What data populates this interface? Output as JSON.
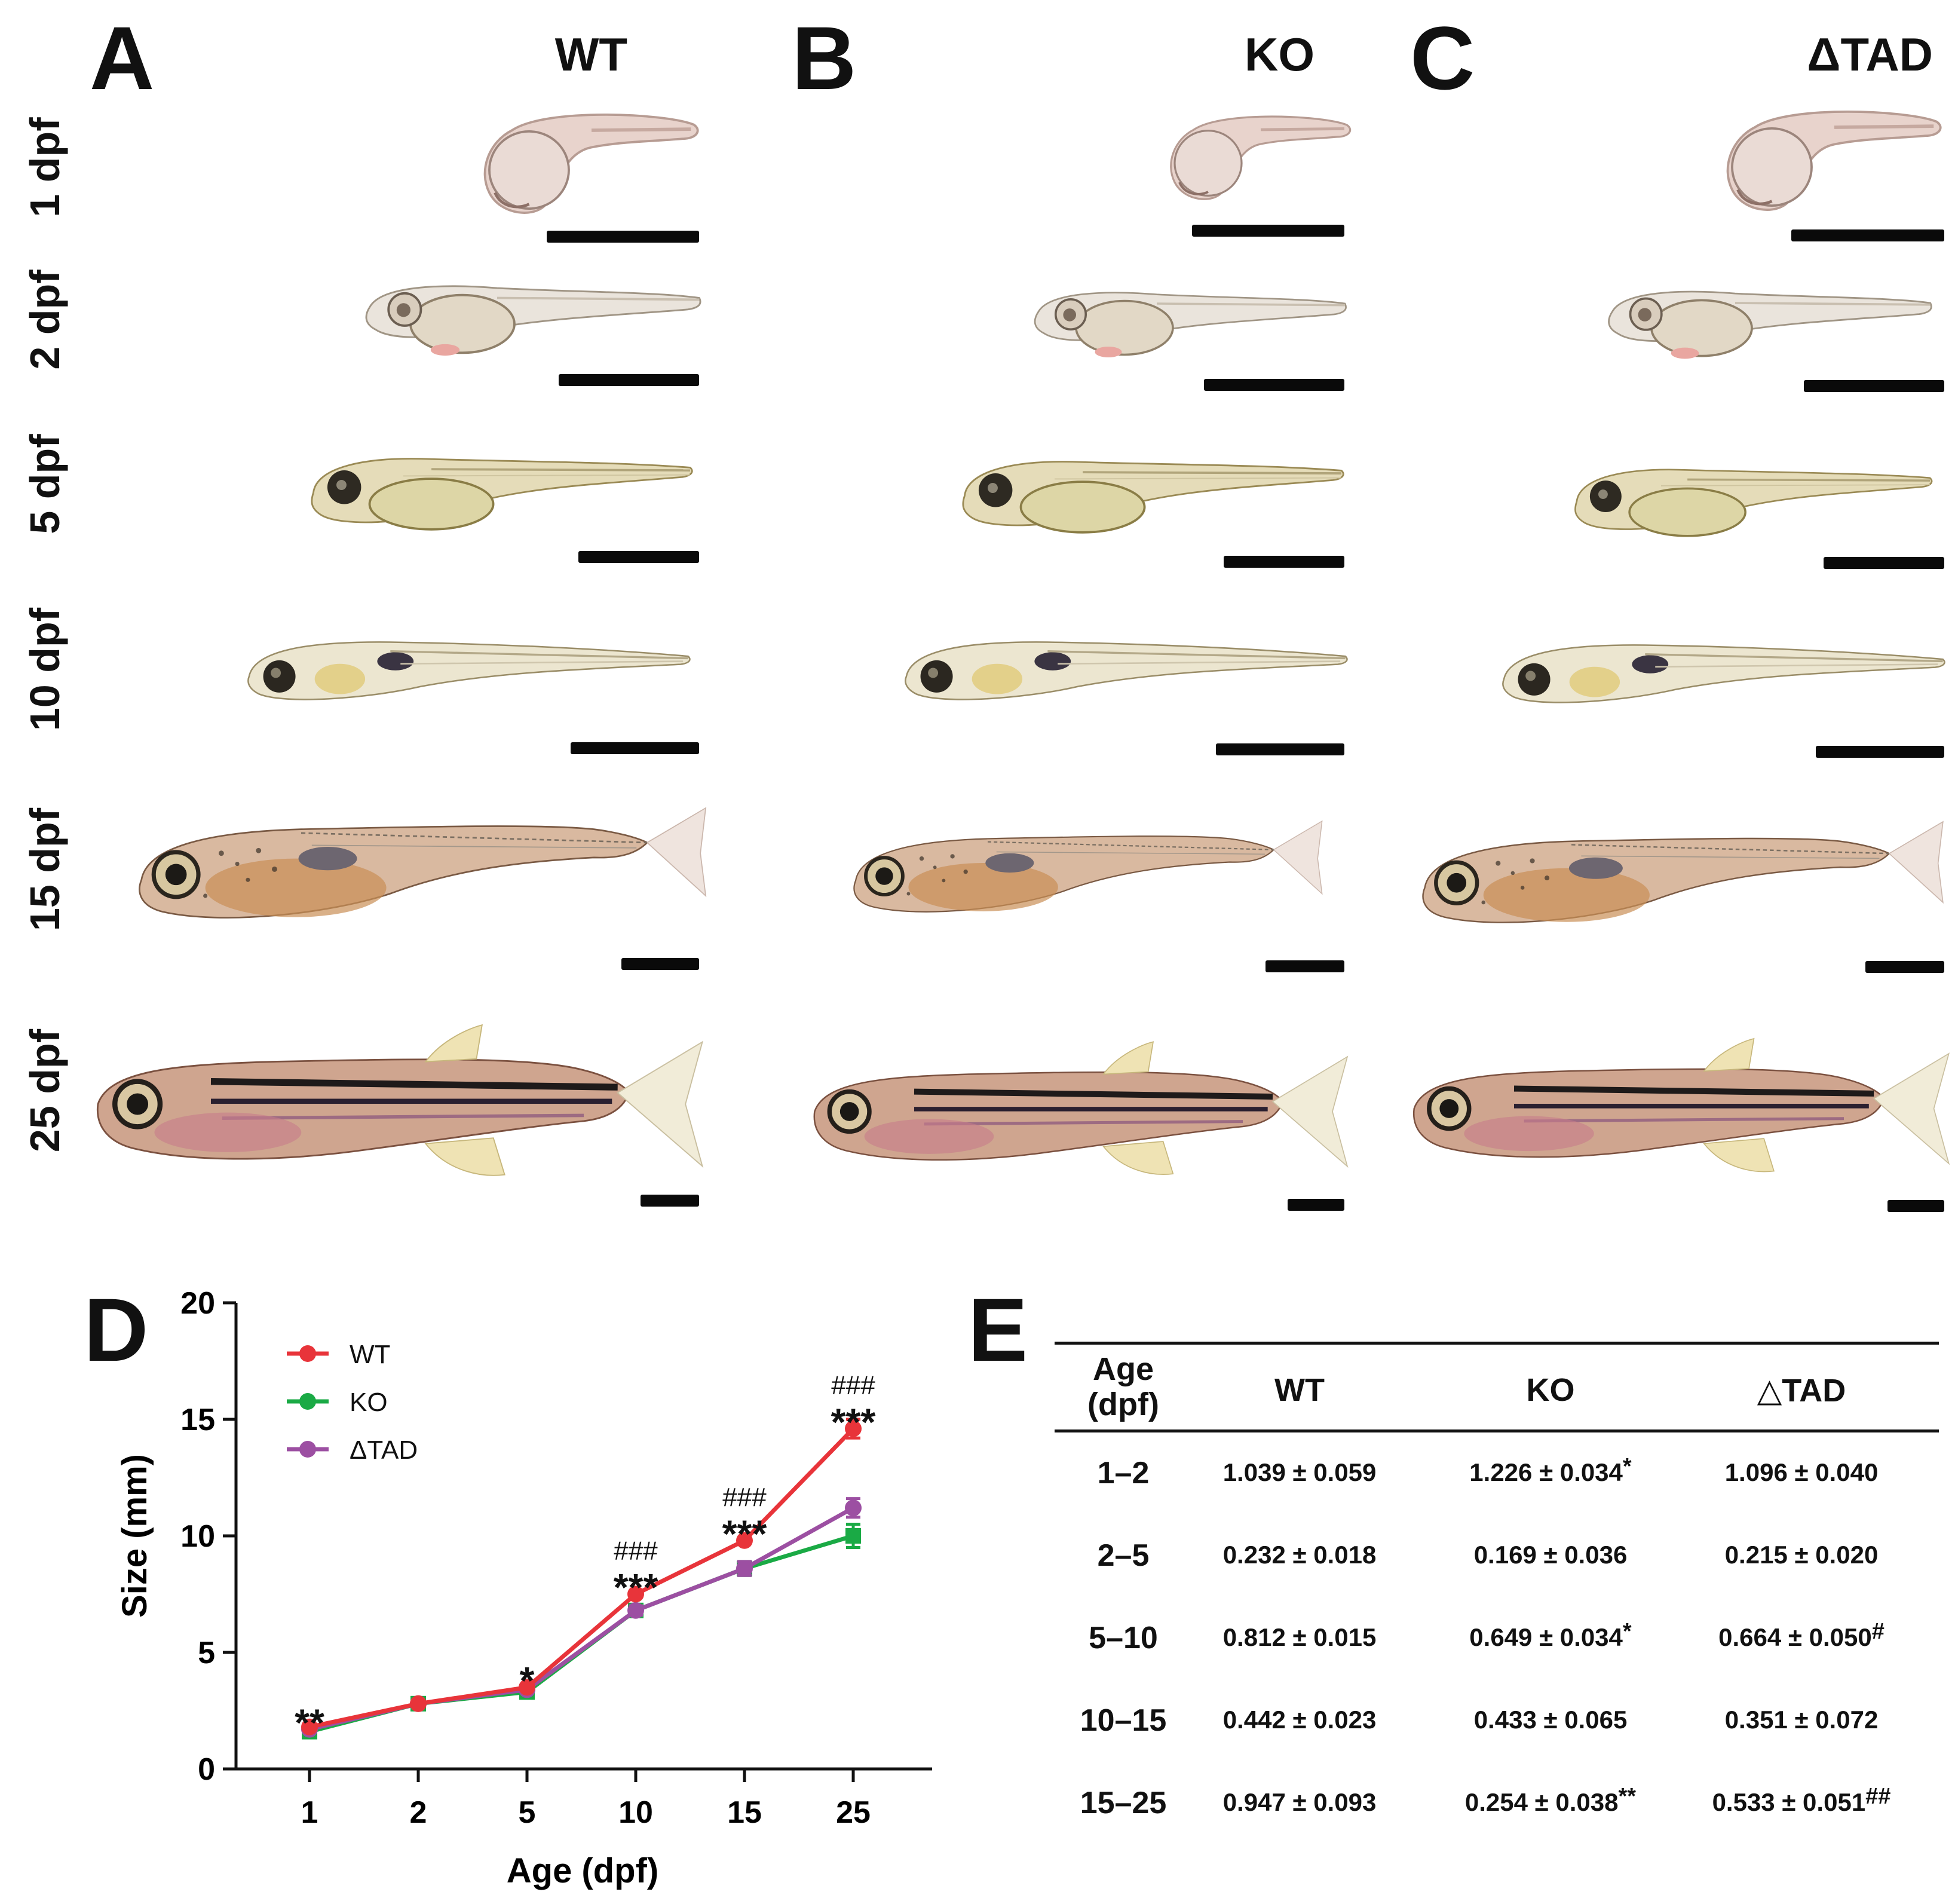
{
  "panels": {
    "A": {
      "letter": "A",
      "genotype": "WT"
    },
    "B": {
      "letter": "B",
      "genotype": "KO"
    },
    "C": {
      "letter": "C",
      "genotype": "ΔTAD"
    },
    "D": {
      "letter": "D"
    },
    "E": {
      "letter": "E"
    }
  },
  "stages": [
    "1 dpf",
    "2 dpf",
    "5 dpf",
    "10 dpf",
    "15 dpf",
    "25 dpf"
  ],
  "chart_data": {
    "type": "line",
    "title": "",
    "xlabel": "Age (dpf)",
    "ylabel": "Size (mm)",
    "categories": [
      "1",
      "2",
      "5",
      "10",
      "15",
      "25"
    ],
    "yticks": [
      "0",
      "5",
      "10",
      "15",
      "20"
    ],
    "ylim": [
      0,
      20
    ],
    "legend_position": "top-left",
    "series": [
      {
        "name": "WT",
        "color": "#e8343a",
        "marker": "circle",
        "values": [
          1.8,
          2.8,
          3.5,
          7.5,
          9.8,
          14.6
        ],
        "errors": [
          0.1,
          0.1,
          0.1,
          0.1,
          0.1,
          0.4
        ]
      },
      {
        "name": "KO",
        "color": "#1aaa45",
        "marker": "square",
        "values": [
          1.6,
          2.8,
          3.3,
          6.8,
          8.6,
          10.0
        ],
        "errors": [
          0.1,
          0.1,
          0.1,
          0.2,
          0.3,
          0.5
        ]
      },
      {
        "name": "ΔTAD",
        "color": "#9c4fa2",
        "marker": "circle",
        "values": [
          1.7,
          2.8,
          3.4,
          6.8,
          8.6,
          11.2
        ],
        "errors": [
          0.1,
          0.1,
          0.1,
          0.2,
          0.3,
          0.4
        ]
      }
    ],
    "annotations": [
      {
        "category": "1",
        "y": 2.4,
        "text": "**",
        "style": "star"
      },
      {
        "category": "5",
        "y": 4.2,
        "text": "*",
        "style": "star"
      },
      {
        "category": "10",
        "y": 8.2,
        "text": "***",
        "style": "star"
      },
      {
        "category": "10",
        "y": 9.5,
        "text": "###",
        "style": "hash"
      },
      {
        "category": "15",
        "y": 10.5,
        "text": "***",
        "style": "star"
      },
      {
        "category": "15",
        "y": 11.8,
        "text": "###",
        "style": "hash"
      },
      {
        "category": "25",
        "y": 15.3,
        "text": "***",
        "style": "star"
      },
      {
        "category": "25",
        "y": 16.6,
        "text": "###",
        "style": "hash"
      }
    ]
  },
  "table": {
    "headers": {
      "age": "Age\n(dpf)",
      "wt": "WT",
      "ko": "KO",
      "dtad": "△TAD"
    },
    "rows": [
      {
        "age": "1–2",
        "wt": "1.039 ± 0.059",
        "ko": "1.226 ± 0.034",
        "ko_mark": "*",
        "dtad": "1.096 ± 0.040",
        "dtad_mark": ""
      },
      {
        "age": "2–5",
        "wt": "0.232 ± 0.018",
        "ko": "0.169 ± 0.036",
        "ko_mark": "",
        "dtad": "0.215 ± 0.020",
        "dtad_mark": ""
      },
      {
        "age": "5–10",
        "wt": "0.812 ± 0.015",
        "ko": "0.649 ± 0.034",
        "ko_mark": "*",
        "dtad": "0.664 ± 0.050",
        "dtad_mark": "#"
      },
      {
        "age": "10–15",
        "wt": "0.442 ± 0.023",
        "ko": "0.433 ± 0.065",
        "ko_mark": "",
        "dtad": "0.351 ± 0.072",
        "dtad_mark": ""
      },
      {
        "age": "15–25",
        "wt": "0.947 ± 0.093",
        "ko": "0.254 ± 0.038",
        "ko_mark": "**",
        "dtad": "0.533 ± 0.051",
        "dtad_mark": "##"
      }
    ]
  }
}
